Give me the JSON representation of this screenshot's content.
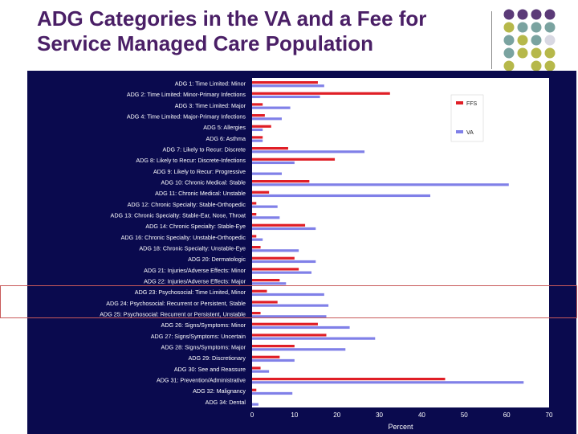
{
  "slide": {
    "title": "ADG Categories in the VA and a Fee for Service Managed Care Population"
  },
  "colors": {
    "title": "#4a1f66",
    "panel_bg": "#0a0a4e",
    "plot_bg": "#ffffff",
    "series_a": "#e01e26",
    "series_b": "#8080e8",
    "dot_purple": "#5b3a78",
    "dot_teal": "#7aa3a0",
    "dot_olive": "#b6b84a",
    "dot_grey": "#d8d8e2"
  },
  "chart_data": {
    "type": "bar",
    "orientation": "horizontal",
    "title": "",
    "xlabel": "Percent",
    "ylabel": "",
    "xlim": [
      0,
      70
    ],
    "xticks": [
      0,
      10,
      20,
      30,
      40,
      50,
      60,
      70
    ],
    "legend_position": "right",
    "categories": [
      "ADG 1: Time Limited: Minor",
      "ADG 2: Time Limited: Minor-Primary Infections",
      "ADG 3: Time Limited: Major",
      "ADG 4: Time Limited: Major-Primary Infections",
      "ADG 5: Allergies",
      "ADG 6: Asthma",
      "ADG 7: Likely to Recur: Discrete",
      "ADG 8: Likely to Recur: Discrete-Infections",
      "ADG 9: Likely to Recur: Progressive",
      "ADG 10: Chronic Medical: Stable",
      "ADG 11: Chronic Medical: Unstable",
      "ADG 12: Chronic Specialty: Stable-Orthopedic",
      "ADG 13: Chronic Specialty: Stable-Ear, Nose, Throat",
      "ADG 14: Chronic Specialty: Stable-Eye",
      "ADG 16: Chronic Specialty: Unstable-Orthopedic",
      "ADG 18: Chronic Specialty: Unstable-Eye",
      "ADG 20: Dermatologic",
      "ADG 21: Injuries/Adverse Effects: Minor",
      "ADG 22: Injuries/Adverse Effects: Major",
      "ADG 23: Psychosocial: Time Limited, Minor",
      "ADG 24: Psychosocial: Recurrent or Persistent, Stable",
      "ADG 25: Psychosocial: Recurrent or Persistent, Unstable",
      "ADG 26: Signs/Symptoms: Minor",
      "ADG 27: Signs/Symptoms: Uncertain",
      "ADG 28: Signs/Symptoms: Major",
      "ADG 29: Discretionary",
      "ADG 30: See and Reassure",
      "ADG 31: Prevention/Administrative",
      "ADG 32: Malignancy",
      "ADG 34: Dental"
    ],
    "series": [
      {
        "name": "FFS",
        "color": "#e01e26",
        "values": [
          15.5,
          32.5,
          2.5,
          3.0,
          4.5,
          2.5,
          8.5,
          19.5,
          0,
          13.5,
          4.0,
          1.0,
          1.0,
          12.5,
          1.0,
          2.0,
          10.0,
          11.0,
          6.5,
          3.5,
          6.0,
          2.0,
          15.5,
          17.5,
          10.0,
          6.5,
          2.0,
          45.5,
          1.0,
          0
        ]
      },
      {
        "name": "VA",
        "color": "#8080e8",
        "values": [
          17.0,
          16.0,
          9.0,
          7.0,
          2.5,
          2.5,
          26.5,
          10.0,
          7.0,
          60.5,
          42.0,
          6.0,
          6.5,
          15.0,
          2.5,
          11.0,
          15.0,
          14.0,
          8.0,
          17.0,
          18.0,
          17.5,
          23.0,
          29.0,
          22.0,
          10.0,
          4.0,
          64.0,
          9.5,
          1.5
        ]
      }
    ]
  }
}
